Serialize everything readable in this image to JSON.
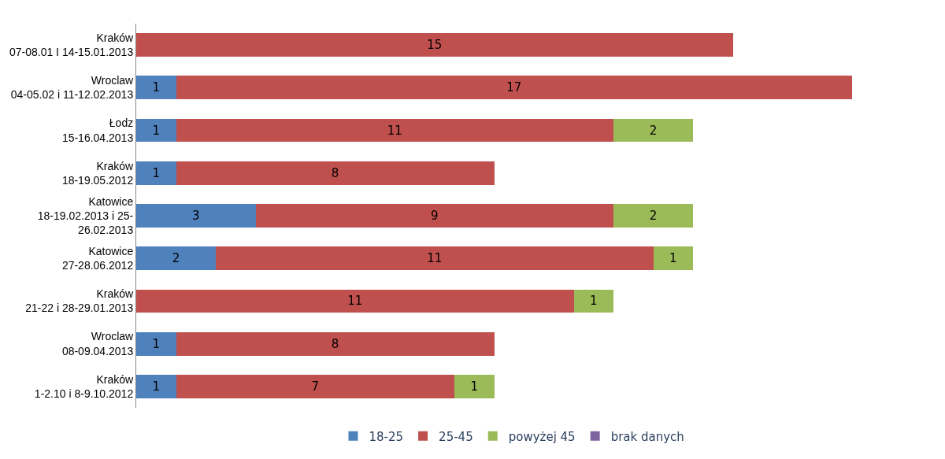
{
  "chart_data": {
    "type": "bar",
    "orientation": "horizontal",
    "stacked": true,
    "data_labels": true,
    "legend": "bottom",
    "categories": [
      "Kraków\n07-08.01 I 14-15.01.2013",
      "Wroclaw\n04-05.02 i 11-12.02.2013",
      "Łodz\n15-16.04.2013",
      "Kraków\n18-19.05.2012",
      "Katowice\n18-19.02.2013 i 25-\n26.02.2013",
      "Katowice\n27-28.06.2012",
      "Kraków\n21-22 i 28-29.01.2013",
      "Wroclaw\n08-09.04.2013",
      "Kraków\n1-2.10 i 8-9.10.2012"
    ],
    "series": [
      {
        "name": "18-25",
        "color": "#4f81bd",
        "values": [
          null,
          1,
          1,
          1,
          3,
          2,
          null,
          1,
          1
        ]
      },
      {
        "name": "25-45",
        "color": "#c0504d",
        "values": [
          15,
          17,
          11,
          8,
          9,
          11,
          11,
          8,
          7
        ]
      },
      {
        "name": "powyżej 45",
        "color": "#9bbb59",
        "values": [
          null,
          null,
          2,
          null,
          2,
          1,
          1,
          null,
          1
        ]
      },
      {
        "name": "brak danych",
        "color": "#8064a2",
        "values": [
          null,
          null,
          null,
          null,
          null,
          null,
          null,
          null,
          null
        ]
      }
    ]
  }
}
